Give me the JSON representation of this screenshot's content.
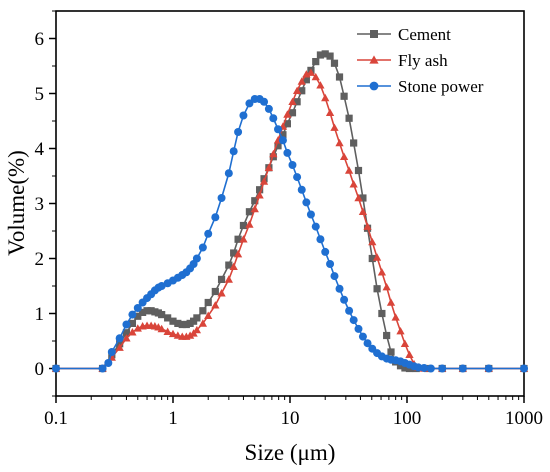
{
  "chart_data": {
    "type": "line",
    "xlabel": "Size (μm)",
    "ylabel": "Volume(%)",
    "xscale": "log",
    "xlim": [
      0.1,
      1000
    ],
    "ylim": [
      -0.5,
      6.5
    ],
    "xticks": [
      0.1,
      1,
      10,
      100,
      1000
    ],
    "xtick_labels": [
      "0.1",
      "1",
      "10",
      "100",
      "1000"
    ],
    "yticks": [
      0,
      1,
      2,
      3,
      4,
      5,
      6
    ],
    "ytick_labels": [
      "0",
      "1",
      "2",
      "3",
      "4",
      "5",
      "6"
    ],
    "grid": false,
    "legend_position": "top-right",
    "series": [
      {
        "name": "Cement",
        "color": "#5f5f5f",
        "marker": "square",
        "x": [
          0.1,
          0.25,
          0.3,
          0.35,
          0.4,
          0.45,
          0.5,
          0.55,
          0.6,
          0.65,
          0.7,
          0.75,
          0.8,
          0.9,
          1.0,
          1.1,
          1.2,
          1.3,
          1.4,
          1.5,
          1.6,
          1.8,
          2.0,
          2.3,
          2.6,
          3.0,
          3.3,
          3.6,
          4.0,
          4.5,
          5.0,
          5.5,
          6.0,
          6.6,
          7.2,
          7.9,
          8.7,
          9.5,
          10.5,
          11.5,
          12.6,
          13.8,
          15.1,
          16.6,
          18.2,
          20.0,
          22.0,
          24.0,
          26.5,
          29.0,
          32.0,
          35.0,
          38.5,
          42.0,
          46.0,
          50.5,
          55.5,
          61.0,
          67.0,
          73.0,
          80.0,
          88.0,
          96.0,
          105,
          120,
          150,
          200,
          300,
          500,
          1000
        ],
        "y": [
          0.0,
          0.0,
          0.25,
          0.45,
          0.65,
          0.82,
          0.95,
          1.02,
          1.05,
          1.05,
          1.03,
          1.01,
          0.98,
          0.92,
          0.86,
          0.82,
          0.8,
          0.8,
          0.82,
          0.86,
          0.92,
          1.05,
          1.2,
          1.4,
          1.62,
          1.88,
          2.1,
          2.35,
          2.6,
          2.85,
          3.05,
          3.25,
          3.45,
          3.65,
          3.85,
          4.05,
          4.25,
          4.45,
          4.65,
          4.85,
          5.05,
          5.25,
          5.42,
          5.58,
          5.7,
          5.72,
          5.68,
          5.55,
          5.3,
          4.95,
          4.55,
          4.1,
          3.6,
          3.1,
          2.55,
          2.0,
          1.45,
          1.0,
          0.6,
          0.3,
          0.12,
          0.05,
          0.01,
          0.0,
          0.0,
          0.0,
          0.0,
          0.0,
          0.0,
          0.0
        ]
      },
      {
        "name": "Fly ash",
        "color": "#d9453a",
        "marker": "triangle",
        "x": [
          0.1,
          0.25,
          0.3,
          0.35,
          0.4,
          0.45,
          0.5,
          0.55,
          0.6,
          0.65,
          0.7,
          0.75,
          0.8,
          0.9,
          1.0,
          1.1,
          1.2,
          1.3,
          1.4,
          1.5,
          1.6,
          1.8,
          2.0,
          2.3,
          2.6,
          3.0,
          3.3,
          3.6,
          4.0,
          4.5,
          5.0,
          5.5,
          6.0,
          6.6,
          7.2,
          7.9,
          8.7,
          9.5,
          10.5,
          11.5,
          12.6,
          13.8,
          15.1,
          16.6,
          18.2,
          20.0,
          22.0,
          24.0,
          26.5,
          29.0,
          32.0,
          35.0,
          38.5,
          42.0,
          46.0,
          50.5,
          55.5,
          61.0,
          67.0,
          73.0,
          80.0,
          88.0,
          96.0,
          105,
          115,
          125,
          140,
          200,
          300,
          500,
          1000
        ],
        "y": [
          0.0,
          0.0,
          0.2,
          0.38,
          0.55,
          0.66,
          0.73,
          0.77,
          0.78,
          0.78,
          0.77,
          0.75,
          0.72,
          0.67,
          0.63,
          0.6,
          0.58,
          0.58,
          0.6,
          0.64,
          0.7,
          0.82,
          0.96,
          1.15,
          1.37,
          1.62,
          1.85,
          2.08,
          2.35,
          2.62,
          2.9,
          3.15,
          3.4,
          3.65,
          3.9,
          4.15,
          4.4,
          4.62,
          4.85,
          5.05,
          5.22,
          5.35,
          5.38,
          5.3,
          5.15,
          4.92,
          4.65,
          4.38,
          4.1,
          3.85,
          3.6,
          3.35,
          3.1,
          2.85,
          2.58,
          2.3,
          2.02,
          1.75,
          1.48,
          1.2,
          0.93,
          0.68,
          0.45,
          0.25,
          0.08,
          0.02,
          0.0,
          0.0,
          0.0,
          0.0,
          0.0
        ]
      },
      {
        "name": "Stone power",
        "color": "#1f6fd1",
        "marker": "circle",
        "x": [
          0.1,
          0.25,
          0.28,
          0.3,
          0.35,
          0.4,
          0.45,
          0.5,
          0.55,
          0.6,
          0.65,
          0.7,
          0.75,
          0.8,
          0.9,
          1.0,
          1.1,
          1.2,
          1.3,
          1.4,
          1.5,
          1.6,
          1.8,
          2.0,
          2.3,
          2.6,
          3.0,
          3.3,
          3.6,
          4.0,
          4.5,
          5.0,
          5.5,
          6.0,
          6.6,
          7.2,
          7.9,
          8.7,
          9.5,
          10.5,
          11.5,
          12.6,
          13.8,
          15.1,
          16.6,
          18.2,
          20.0,
          22.0,
          24.0,
          26.5,
          29.0,
          32.0,
          35.0,
          38.5,
          42.0,
          46.0,
          50.5,
          55.5,
          61.0,
          67.0,
          73.0,
          80.0,
          88.0,
          96.0,
          105,
          115,
          125,
          140,
          160,
          200,
          300,
          500,
          1000
        ],
        "y": [
          0.0,
          0.0,
          0.1,
          0.3,
          0.55,
          0.8,
          0.98,
          1.1,
          1.2,
          1.28,
          1.35,
          1.42,
          1.47,
          1.5,
          1.55,
          1.6,
          1.65,
          1.7,
          1.75,
          1.82,
          1.9,
          2.0,
          2.2,
          2.45,
          2.75,
          3.1,
          3.55,
          3.95,
          4.3,
          4.6,
          4.82,
          4.9,
          4.9,
          4.85,
          4.72,
          4.55,
          4.35,
          4.15,
          3.92,
          3.7,
          3.48,
          3.25,
          3.02,
          2.8,
          2.58,
          2.35,
          2.12,
          1.9,
          1.68,
          1.45,
          1.25,
          1.05,
          0.88,
          0.72,
          0.58,
          0.46,
          0.36,
          0.28,
          0.22,
          0.18,
          0.16,
          0.15,
          0.13,
          0.1,
          0.07,
          0.04,
          0.02,
          0.01,
          0.0,
          0.0,
          0.0,
          0.0,
          0.0
        ]
      }
    ]
  }
}
